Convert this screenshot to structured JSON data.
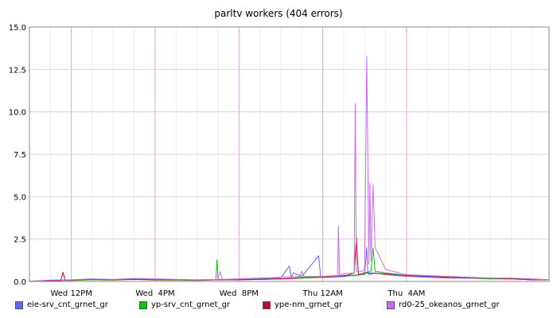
{
  "chart_data": {
    "type": "line",
    "title": "parltv workers (404 errors)",
    "xlabel": "",
    "ylabel": "",
    "ylim": [
      0,
      15
    ],
    "yticks": [
      "0.0",
      "2.5",
      "5.0",
      "7.5",
      "10.0",
      "12.5",
      "15.0"
    ],
    "xlim": [
      10.0,
      34.8
    ],
    "xticks": [
      {
        "label": "Wed 12PM",
        "t": 12
      },
      {
        "label": "Wed  4PM",
        "t": 16
      },
      {
        "label": "Wed  8PM",
        "t": 20
      },
      {
        "label": "Thu 12AM",
        "t": 24
      },
      {
        "label": "Thu  4AM",
        "t": 28
      }
    ],
    "grid": true,
    "legend_position": "bottom",
    "series": [
      {
        "name": "eie-srv_cnt_grnet_gr",
        "color": "#6666ff",
        "x": [
          10.0,
          11.0,
          12.0,
          13.0,
          14.0,
          15.0,
          16.0,
          17.0,
          18.0,
          19.0,
          20.0,
          21.0,
          22.0,
          22.4,
          22.5,
          22.6,
          23.0,
          23.8,
          23.9,
          24.0,
          25.0,
          26.0,
          26.1,
          26.15,
          26.2,
          26.5,
          27.0,
          28.0,
          29.0,
          30.0,
          31.0,
          32.0,
          33.0,
          34.0,
          34.8
        ],
        "values": [
          0.02,
          0.05,
          0.08,
          0.12,
          0.1,
          0.15,
          0.1,
          0.1,
          0.08,
          0.1,
          0.12,
          0.15,
          0.2,
          0.9,
          0.25,
          0.5,
          0.3,
          1.5,
          0.3,
          0.3,
          0.35,
          0.4,
          2.0,
          0.6,
          0.4,
          0.5,
          0.4,
          0.3,
          0.25,
          0.2,
          0.2,
          0.15,
          0.15,
          0.1,
          0.1
        ]
      },
      {
        "name": "yp-srv_cnt_grnet_gr",
        "color": "#00cc00",
        "x": [
          10.0,
          11.0,
          12.0,
          13.0,
          14.0,
          15.0,
          16.0,
          17.0,
          18.0,
          18.9,
          18.95,
          19.0,
          20.0,
          21.0,
          22.0,
          23.0,
          24.0,
          25.0,
          25.9,
          26.0,
          26.3,
          26.4,
          26.5,
          27.0,
          28.0,
          29.0,
          30.0,
          31.0,
          32.0,
          33.0,
          34.0,
          34.8
        ],
        "values": [
          0.02,
          0.05,
          0.06,
          0.1,
          0.08,
          0.12,
          0.08,
          0.08,
          0.06,
          0.1,
          1.3,
          0.1,
          0.1,
          0.12,
          0.15,
          0.25,
          0.25,
          0.3,
          0.4,
          0.5,
          0.6,
          2.0,
          0.6,
          0.5,
          0.35,
          0.3,
          0.25,
          0.2,
          0.15,
          0.15,
          0.1,
          0.1
        ]
      },
      {
        "name": "ype-nm_grnet_gr",
        "color": "#cc0033",
        "x": [
          10.0,
          11.0,
          11.5,
          11.6,
          11.7,
          12.0,
          13.0,
          14.0,
          15.0,
          16.0,
          17.0,
          18.0,
          19.0,
          20.0,
          21.0,
          22.0,
          23.0,
          24.0,
          25.0,
          25.5,
          25.6,
          25.7,
          26.0,
          27.0,
          28.0,
          29.0,
          30.0,
          31.0,
          32.0,
          33.0,
          34.0,
          34.8
        ],
        "values": [
          0.02,
          0.05,
          0.05,
          0.55,
          0.08,
          0.08,
          0.12,
          0.1,
          0.12,
          0.1,
          0.1,
          0.08,
          0.1,
          0.1,
          0.12,
          0.15,
          0.2,
          0.25,
          0.3,
          0.5,
          2.6,
          0.4,
          0.5,
          0.45,
          0.35,
          0.3,
          0.25,
          0.2,
          0.2,
          0.15,
          0.1,
          0.1
        ]
      },
      {
        "name": "rd0-25_okeanos_grnet_gr",
        "color": "#cc66ff",
        "x": [
          10.0,
          11.0,
          12.0,
          13.0,
          14.0,
          15.0,
          16.0,
          17.0,
          18.0,
          19.0,
          19.1,
          19.2,
          20.0,
          21.0,
          22.0,
          22.9,
          23.0,
          23.1,
          24.0,
          24.7,
          24.75,
          24.8,
          25.0,
          25.5,
          25.55,
          25.6,
          25.9,
          26.0,
          26.1,
          26.2,
          26.25,
          26.3,
          26.4,
          26.5,
          27.0,
          28.0,
          29.0,
          30.0,
          31.0,
          32.0,
          33.0,
          34.0,
          34.8
        ],
        "values": [
          0.02,
          0.08,
          0.1,
          0.15,
          0.12,
          0.18,
          0.15,
          0.12,
          0.1,
          0.12,
          0.6,
          0.12,
          0.15,
          0.2,
          0.25,
          0.3,
          0.6,
          0.3,
          0.3,
          0.35,
          3.3,
          0.4,
          0.45,
          0.5,
          10.5,
          0.6,
          0.6,
          0.8,
          13.3,
          1.0,
          5.8,
          1.2,
          5.7,
          2.0,
          0.7,
          0.4,
          0.35,
          0.3,
          0.25,
          0.2,
          0.2,
          0.15,
          0.1
        ]
      }
    ]
  }
}
